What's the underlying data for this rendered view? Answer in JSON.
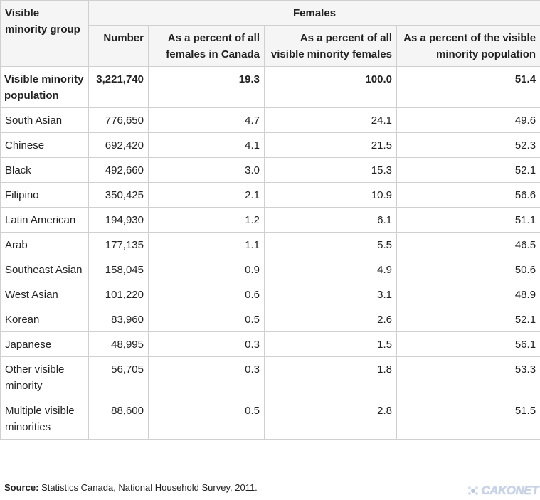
{
  "table": {
    "header": {
      "group": "Visible minority group",
      "females": "Females",
      "number": "Number",
      "pct_all_females": "As a percent of all females in Canada",
      "pct_vm_females": "As a percent of all visible minority females",
      "pct_vm_population": "As a percent of the visible minority population"
    },
    "total": {
      "label": "Visible minority population",
      "number": "3,221,740",
      "pct_all_females": "19.3",
      "pct_vm_females": "100.0",
      "pct_vm_population": "51.4"
    },
    "rows": [
      {
        "label": "South Asian",
        "number": "776,650",
        "pct_all_females": "4.7",
        "pct_vm_females": "24.1",
        "pct_vm_population": "49.6"
      },
      {
        "label": "Chinese",
        "number": "692,420",
        "pct_all_females": "4.1",
        "pct_vm_females": "21.5",
        "pct_vm_population": "52.3"
      },
      {
        "label": "Black",
        "number": "492,660",
        "pct_all_females": "3.0",
        "pct_vm_females": "15.3",
        "pct_vm_population": "52.1"
      },
      {
        "label": "Filipino",
        "number": "350,425",
        "pct_all_females": "2.1",
        "pct_vm_females": "10.9",
        "pct_vm_population": "56.6"
      },
      {
        "label": "Latin American",
        "number": "194,930",
        "pct_all_females": "1.2",
        "pct_vm_females": "6.1",
        "pct_vm_population": "51.1"
      },
      {
        "label": "Arab",
        "number": "177,135",
        "pct_all_females": "1.1",
        "pct_vm_females": "5.5",
        "pct_vm_population": "46.5"
      },
      {
        "label": "Southeast Asian",
        "number": "158,045",
        "pct_all_females": "0.9",
        "pct_vm_females": "4.9",
        "pct_vm_population": "50.6"
      },
      {
        "label": "West Asian",
        "number": "101,220",
        "pct_all_females": "0.6",
        "pct_vm_females": "3.1",
        "pct_vm_population": "48.9"
      },
      {
        "label": "Korean",
        "number": "83,960",
        "pct_all_females": "0.5",
        "pct_vm_females": "2.6",
        "pct_vm_population": "52.1"
      },
      {
        "label": "Japanese",
        "number": "48,995",
        "pct_all_females": "0.3",
        "pct_vm_females": "1.5",
        "pct_vm_population": "56.1"
      },
      {
        "label": "Other visible minority",
        "number": "56,705",
        "pct_all_females": "0.3",
        "pct_vm_females": "1.8",
        "pct_vm_population": "53.3"
      },
      {
        "label": "Multiple visible minorities",
        "number": "88,600",
        "pct_all_females": "0.5",
        "pct_vm_females": "2.8",
        "pct_vm_population": "51.5"
      }
    ]
  },
  "source": {
    "label": "Source:",
    "text": "Statistics Canada, National Household Survey, 2011."
  },
  "watermark": {
    "text": "CAKONET",
    "icon": "cakonet-logo-icon",
    "color": "#c9d3e6"
  }
}
